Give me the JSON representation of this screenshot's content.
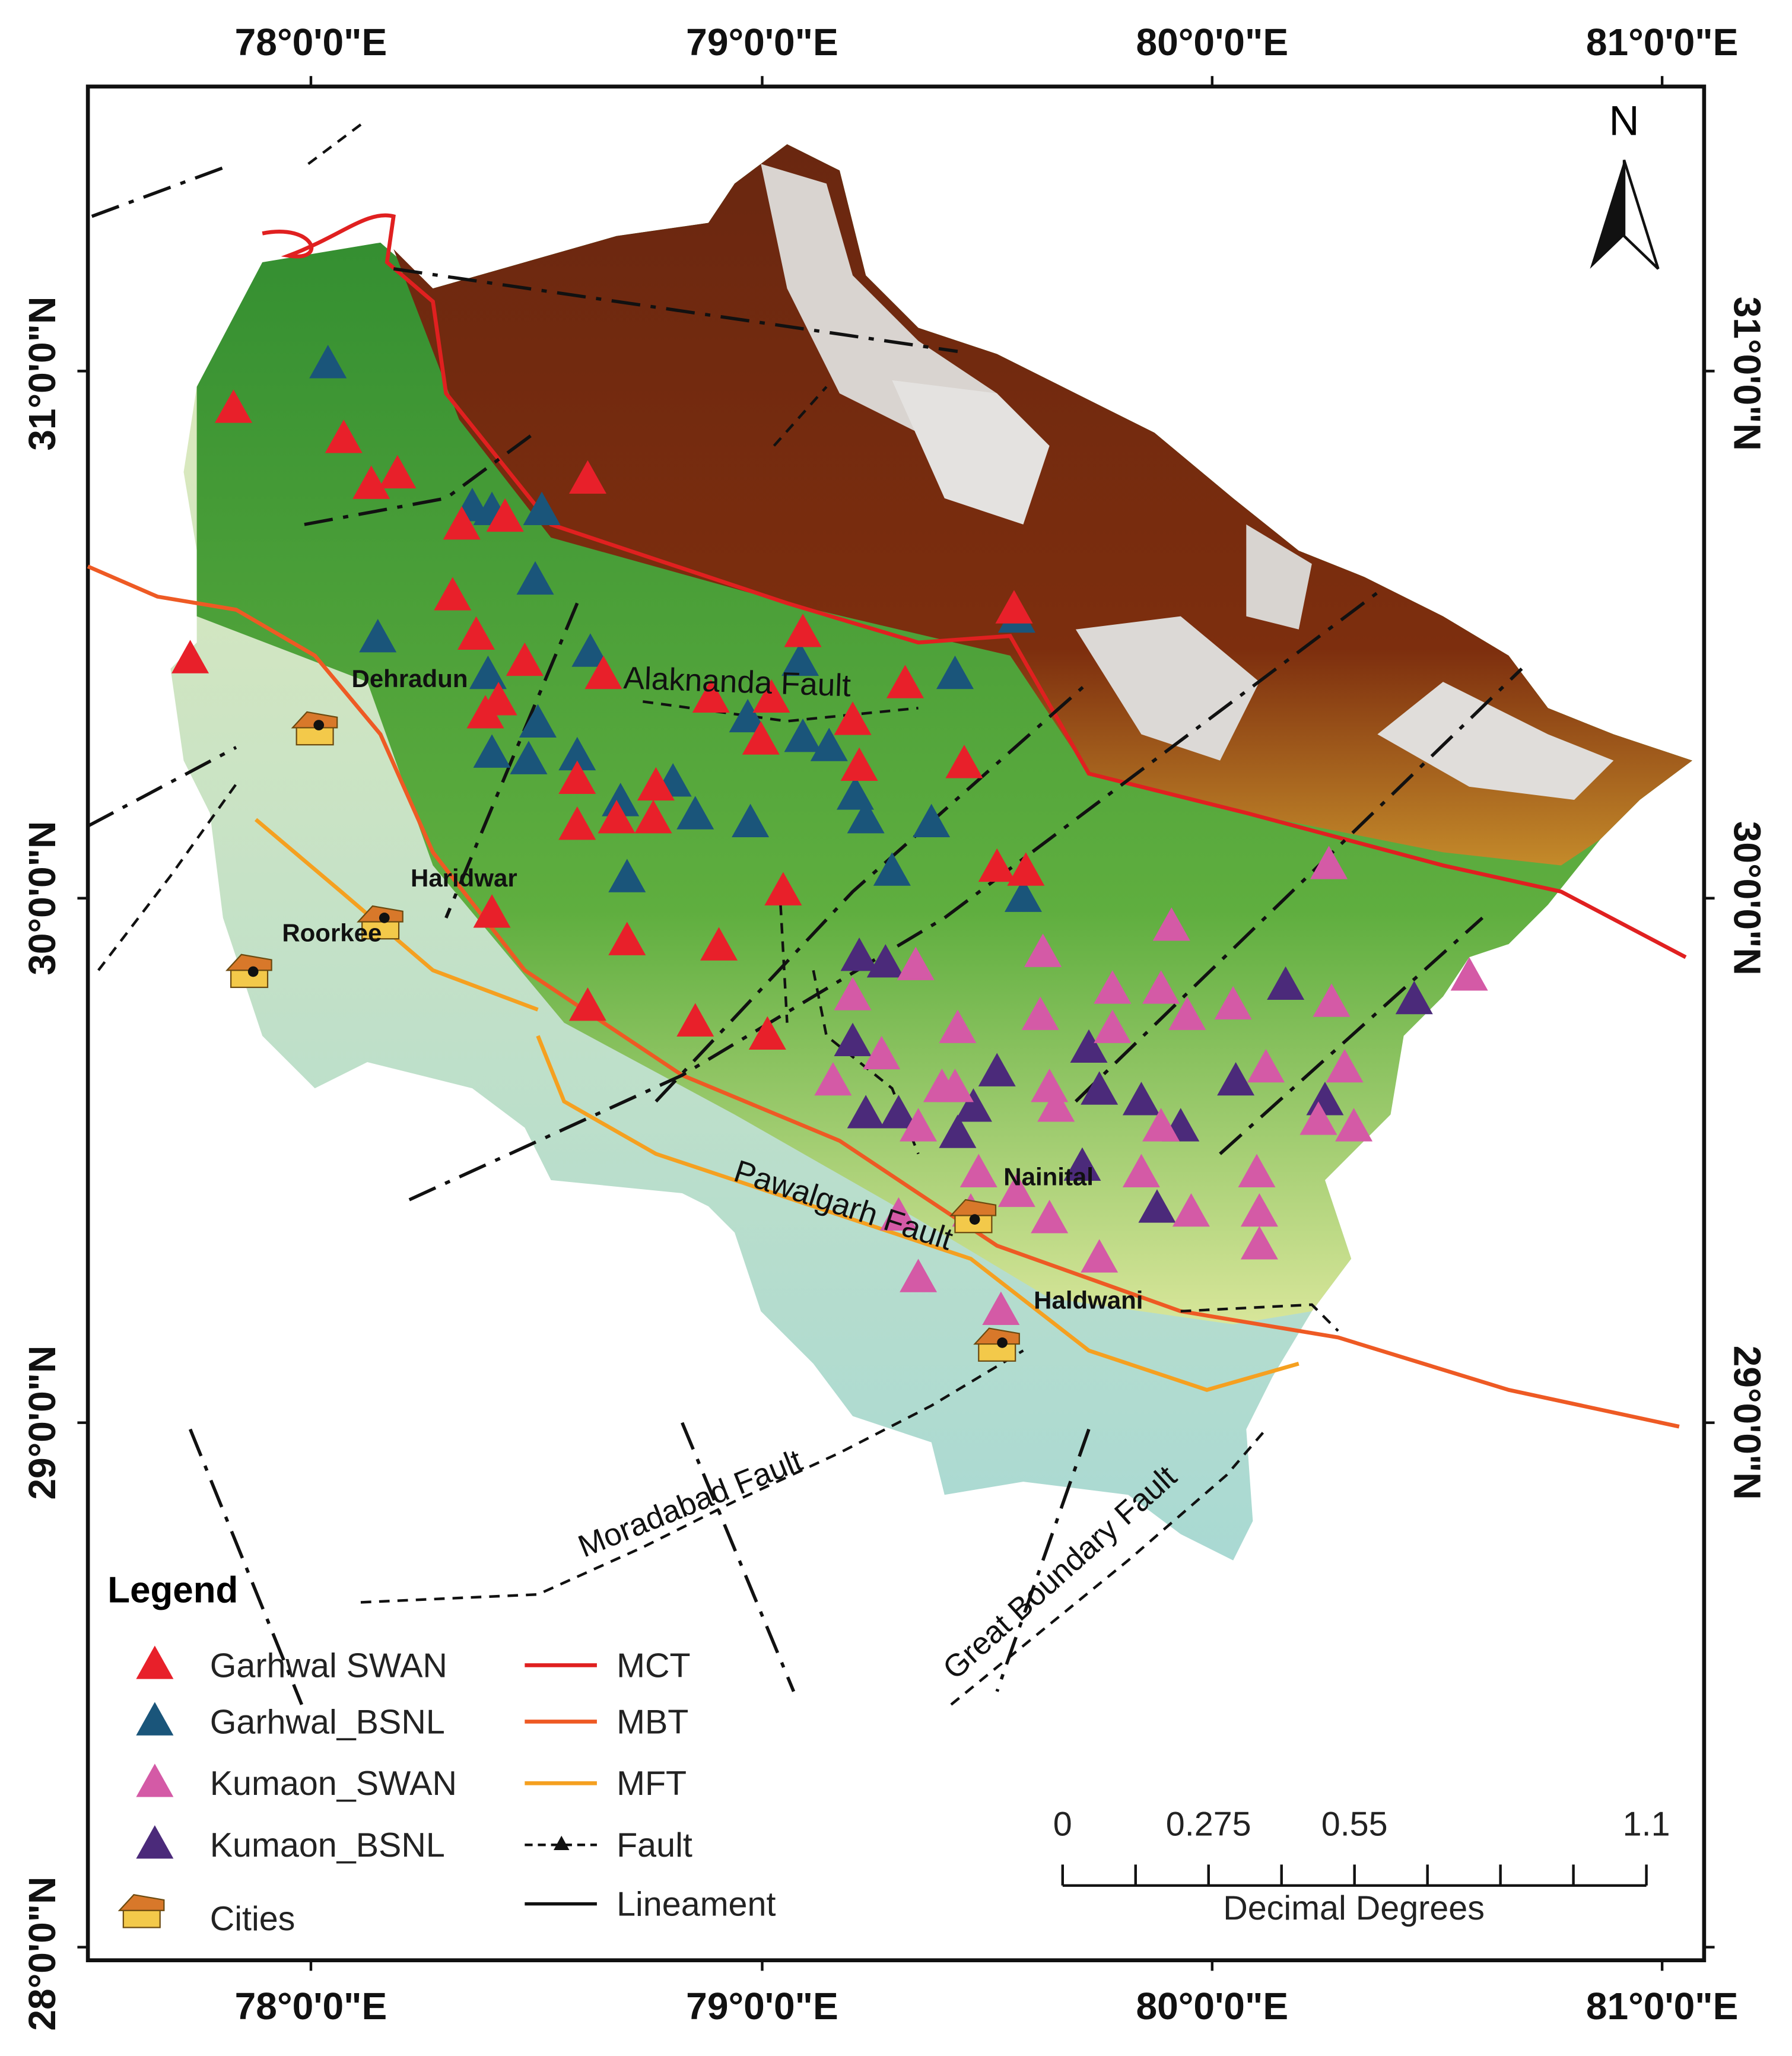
{
  "map": {
    "north_arrow": "N",
    "x_axis_labels": [
      "78°0'0\"E",
      "79°0'0\"E",
      "80°0'0\"E",
      "81°0'0\"E"
    ],
    "y_axis_labels": [
      "31°0'0\"N",
      "30°0'0\"N",
      "29°0'0\"N",
      "28°0'0\"N"
    ],
    "cities": [
      "Dehradun",
      "Haridwar",
      "Roorkee",
      "Nainital",
      "Haldwani"
    ],
    "faults": [
      "Alaknanda Fault",
      "Pawalgarh Fault",
      "Moradabad Fault",
      "Great Boundary Fault"
    ],
    "legend": {
      "title": "Legend",
      "stations": [
        "Garhwal SWAN",
        "Garhwal_BSNL",
        "Kumaon_SWAN",
        "Kumaon_BSNL",
        "Cities"
      ],
      "lines": [
        "MCT",
        "MBT",
        "MFT",
        "Fault",
        "Lineament"
      ]
    },
    "scale_bar": {
      "ticks": [
        0,
        0.275,
        0.55,
        1.1
      ],
      "unit": "Decimal Degrees"
    }
  }
}
